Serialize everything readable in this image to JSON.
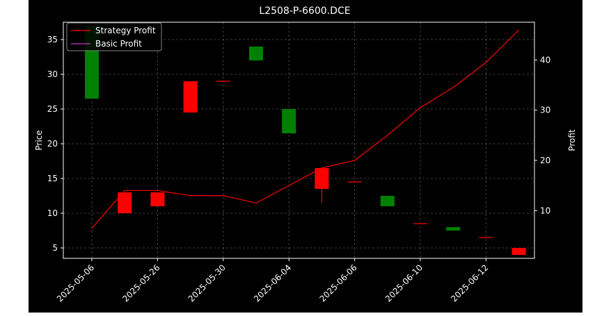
{
  "chart_data": {
    "type": "candlestick+line",
    "title": "L2508-P-6600.DCE",
    "xlabel": "",
    "ylabel_left": "Price",
    "ylabel_right": "Profit",
    "x_tick_labels": [
      "2025-05-06",
      "2025-05-26",
      "2025-05-30",
      "2025-06-04",
      "2025-06-06",
      "2025-06-10",
      "2025-06-12"
    ],
    "ylim_left": [
      3.5,
      37.5
    ],
    "yticks_left": [
      5,
      10,
      15,
      20,
      25,
      30,
      35
    ],
    "ylim_right": [
      0.5,
      47.5
    ],
    "yticks_right": [
      10,
      20,
      30,
      40
    ],
    "grid": true,
    "legend_position": "top-left",
    "legend": [
      {
        "label": "Strategy Profit",
        "color": "#ff0000"
      },
      {
        "label": "Basic Profit",
        "color": "#cc33cc"
      }
    ],
    "candles": [
      {
        "open": 26.5,
        "close": 37.0,
        "high": 37.0,
        "low": 26.5
      },
      {
        "open": 13.0,
        "close": 10.0,
        "high": 13.0,
        "low": 10.0
      },
      {
        "open": 13.0,
        "close": 11.0,
        "high": 13.0,
        "low": 11.0
      },
      {
        "open": 29.0,
        "close": 24.5,
        "high": 29.0,
        "low": 24.5
      },
      {
        "open": 29.0,
        "close": 29.0,
        "high": 29.0,
        "low": 29.0
      },
      {
        "open": 32.0,
        "close": 34.0,
        "high": 34.0,
        "low": 32.0
      },
      {
        "open": 21.5,
        "close": 25.0,
        "high": 25.0,
        "low": 21.5
      },
      {
        "open": 16.5,
        "close": 13.5,
        "high": 16.5,
        "low": 11.5
      },
      {
        "open": 14.5,
        "close": 14.5,
        "high": 14.5,
        "low": 14.5
      },
      {
        "open": 11.0,
        "close": 12.5,
        "high": 12.5,
        "low": 11.0
      },
      {
        "open": 8.5,
        "close": 8.5,
        "high": 8.5,
        "low": 8.5
      },
      {
        "open": 7.5,
        "close": 8.0,
        "high": 8.0,
        "low": 7.5
      },
      {
        "open": 6.5,
        "close": 6.5,
        "high": 6.5,
        "low": 6.5
      },
      {
        "open": 5.0,
        "close": 4.0,
        "high": 5.0,
        "low": 4.0
      }
    ],
    "series": [
      {
        "name": "Strategy Profit",
        "color": "#ff0000",
        "values": [
          6.5,
          14.0,
          14.0,
          13.0,
          13.0,
          11.5,
          15.0,
          18.5,
          20.0,
          25.0,
          30.5,
          34.5,
          39.5,
          46.0
        ]
      },
      {
        "name": "Basic Profit",
        "color": "#cc33cc",
        "values": []
      }
    ],
    "colors": {
      "up": "#008000",
      "down": "#ff0000",
      "background": "#000000",
      "axes": "#ffffff"
    }
  }
}
